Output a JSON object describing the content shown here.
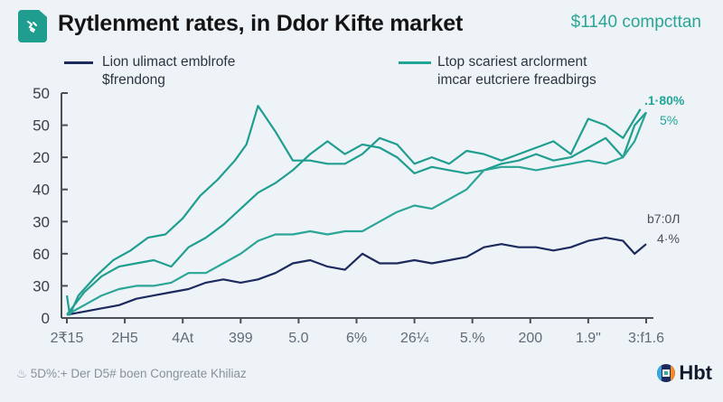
{
  "header": {
    "icon": "document-chart-icon",
    "title": "Rytlenment rates, in Ddor Kifte market",
    "subtitle": "$1140 compcttan"
  },
  "legend": [
    {
      "line1": "Lion ulimact emblrofe",
      "line2": "$frendong",
      "color": "#1c2a5e"
    },
    {
      "line1": "Ltop scariest arclorment",
      "line2": "imcar eutcriere freadbirgs",
      "color": "#22a596"
    }
  ],
  "chart_data": {
    "type": "line",
    "title": "Rytlenment rates, in Ddor Kifte market",
    "xlabel": "",
    "ylabel": "",
    "ylim": [
      0,
      70
    ],
    "yticks": [
      0,
      10,
      20,
      30,
      40,
      50,
      60,
      70
    ],
    "ytick_labels": [
      "0",
      "30",
      "60",
      "30",
      "40",
      "20",
      "50",
      "50"
    ],
    "x_range": [
      0,
      10
    ],
    "xticks": [
      0,
      1,
      2,
      3,
      4,
      5,
      6,
      7,
      8,
      9,
      10
    ],
    "xtick_labels": [
      "2₹15",
      "2H5",
      "4At",
      "399",
      "5.0",
      "6%",
      "26¼",
      "5.%",
      "200",
      "1.9\"",
      "3:f1.6"
    ],
    "grid": false,
    "legend_position": "top",
    "series": [
      {
        "name": "Lion ulimact emblrofe $frendong",
        "color": "#1c2a5e",
        "end_label": [
          "b7:0Л",
          "4·%"
        ],
        "x": [
          0,
          0.3,
          0.6,
          0.9,
          1.2,
          1.5,
          1.8,
          2.1,
          2.4,
          2.7,
          3.0,
          3.3,
          3.6,
          3.9,
          4.2,
          4.5,
          4.8,
          5.1,
          5.4,
          5.7,
          6.0,
          6.3,
          6.6,
          6.9,
          7.2,
          7.5,
          7.8,
          8.1,
          8.4,
          8.7,
          9.0,
          9.3,
          9.6,
          9.8,
          10.0
        ],
        "y": [
          1,
          2,
          3,
          4,
          6,
          7,
          8,
          9,
          11,
          12,
          11,
          12,
          14,
          17,
          18,
          16,
          15,
          20,
          17,
          17,
          18,
          17,
          18,
          19,
          22,
          23,
          22,
          22,
          21,
          22,
          24,
          25,
          24,
          20,
          23
        ]
      },
      {
        "name": "Ltop scariest arclorment (upper)",
        "color": "#1f9e8f",
        "end_label": [
          ".1·80%"
        ],
        "x": [
          0,
          0.05,
          0.2,
          0.5,
          0.8,
          1.1,
          1.4,
          1.7,
          2.0,
          2.3,
          2.6,
          2.9,
          3.1,
          3.3,
          3.6,
          3.9,
          4.2,
          4.5,
          4.8,
          5.1,
          5.4,
          5.7,
          6.0,
          6.3,
          6.6,
          6.9,
          7.2,
          7.5,
          7.8,
          8.1,
          8.4,
          8.7,
          9.0,
          9.3,
          9.6,
          9.9
        ],
        "y": [
          7,
          1,
          7,
          13,
          18,
          21,
          25,
          26,
          31,
          38,
          43,
          49,
          54,
          66,
          58,
          49,
          49,
          48,
          48,
          51,
          56,
          54,
          48,
          50,
          48,
          52,
          51,
          49,
          51,
          53,
          55,
          51,
          62,
          60,
          56,
          65
        ]
      },
      {
        "name": "Ltop scariest arclorment (middle)",
        "color": "#1f9e8f",
        "end_label": [
          "5%"
        ],
        "x": [
          0,
          0.3,
          0.6,
          0.9,
          1.2,
          1.5,
          1.8,
          2.1,
          2.4,
          2.7,
          3.0,
          3.3,
          3.6,
          3.9,
          4.2,
          4.5,
          4.8,
          5.1,
          5.4,
          5.7,
          6.0,
          6.3,
          6.6,
          6.9,
          7.2,
          7.5,
          7.8,
          8.1,
          8.4,
          8.7,
          9.0,
          9.3,
          9.6,
          9.8,
          10.0
        ],
        "y": [
          1,
          8,
          13,
          16,
          17,
          18,
          16,
          22,
          25,
          29,
          34,
          39,
          42,
          46,
          51,
          55,
          51,
          54,
          53,
          50,
          45,
          47,
          46,
          45,
          46,
          48,
          49,
          51,
          49,
          50,
          53,
          56,
          50,
          60,
          64
        ]
      },
      {
        "name": "Ltop scariest arclorment (lower)",
        "color": "#2aa596",
        "end_label": [],
        "x": [
          0,
          0.3,
          0.6,
          0.9,
          1.2,
          1.5,
          1.8,
          2.1,
          2.4,
          2.7,
          3.0,
          3.3,
          3.6,
          3.9,
          4.2,
          4.5,
          4.8,
          5.1,
          5.4,
          5.7,
          6.0,
          6.3,
          6.6,
          6.9,
          7.2,
          7.5,
          7.8,
          8.1,
          8.4,
          8.7,
          9.0,
          9.3,
          9.6,
          9.8,
          10.0
        ],
        "y": [
          1,
          4,
          7,
          9,
          10,
          10,
          11,
          14,
          14,
          17,
          20,
          24,
          26,
          26,
          27,
          26,
          27,
          27,
          30,
          33,
          35,
          34,
          37,
          40,
          46,
          47,
          47,
          46,
          47,
          48,
          49,
          48,
          50,
          55,
          64
        ]
      }
    ]
  },
  "footer": {
    "icon": "bell-icon",
    "source": "5D%:+ Der D5# boen Congreate Khiliaz"
  },
  "brand": {
    "icon": "brand-logo-icon",
    "name": "Hbt"
  }
}
